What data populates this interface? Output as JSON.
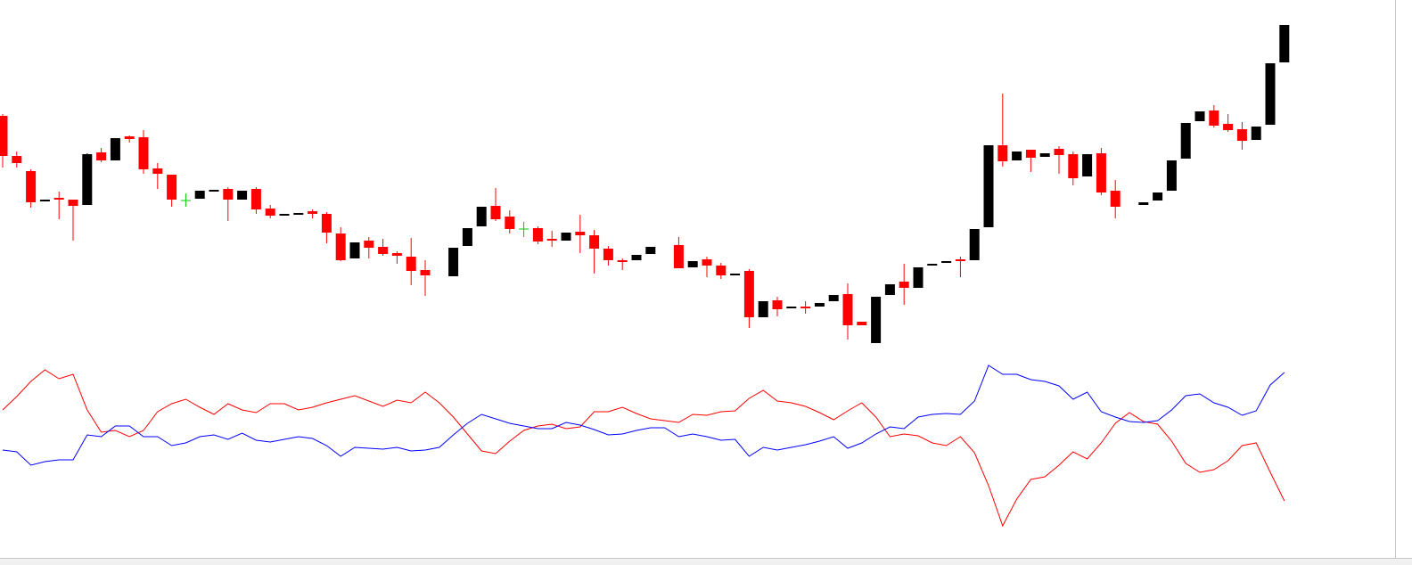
{
  "chart_data": {
    "type": "candlestick",
    "ylim": [
      10,
      640
    ],
    "up_color": "#000000",
    "down_color": "#ff0000",
    "doji_color": "#00cc00",
    "open": [
      510,
      465,
      448,
      415,
      418,
      416,
      410,
      469,
      460,
      487,
      486,
      451,
      444,
      415,
      417,
      426,
      428,
      416,
      428,
      406,
      399,
      400,
      403,
      400,
      378,
      350,
      370,
      363,
      356,
      352,
      337,
      null,
      330,
      364,
      386,
      409,
      397,
      383,
      384,
      372,
      370,
      380,
      376,
      361,
      348,
      348,
      355,
      null,
      365,
      340,
      349,
      342,
      332,
      336,
      284,
      303,
      295,
      296,
      296,
      302,
      310,
      279,
      255,
      309,
      324,
      317,
      342,
      346,
      349,
      348,
      385,
      477,
      460,
      472,
      464,
      473,
      467,
      442,
      468,
      426,
      null,
      410,
      415,
      426,
      462,
      504,
      516,
      501,
      495,
      483,
      500,
      570
    ],
    "high": [
      512,
      470,
      450,
      416,
      425,
      416,
      468,
      474,
      485,
      488,
      494,
      457,
      444,
      423,
      426,
      427,
      430,
      426,
      430,
      410,
      400,
      401,
      405,
      402,
      385,
      368,
      374,
      372,
      358,
      373,
      348,
      null,
      362,
      384,
      408,
      429,
      404,
      391,
      386,
      381,
      379,
      399,
      382,
      364,
      350,
      354,
      363,
      null,
      374,
      347,
      352,
      345,
      333,
      338,
      302,
      307,
      296,
      302,
      300,
      309,
      322,
      279,
      307,
      321,
      344,
      340,
      344,
      347,
      352,
      383,
      477,
      535,
      470,
      472,
      468,
      476,
      470,
      467,
      474,
      438,
      null,
      413,
      424,
      460,
      502,
      515,
      522,
      512,
      503,
      498,
      569,
      612
    ],
    "low": [
      452,
      452,
      407,
      415,
      394,
      370,
      410,
      458,
      460,
      480,
      445,
      428,
      408,
      408,
      417,
      426,
      392,
      416,
      400,
      395,
      399,
      400,
      395,
      367,
      347,
      350,
      350,
      353,
      344,
      320,
      308,
      null,
      330,
      364,
      386,
      392,
      378,
      374,
      366,
      363,
      370,
      356,
      333,
      342,
      337,
      348,
      355,
      null,
      339,
      340,
      329,
      327,
      332,
      272,
      284,
      285,
      295,
      288,
      296,
      302,
      259,
      275,
      255,
      309,
      298,
      317,
      342,
      346,
      329,
      348,
      385,
      453,
      460,
      447,
      464,
      445,
      432,
      442,
      421,
      395,
      null,
      410,
      415,
      426,
      462,
      504,
      497,
      492,
      472,
      483,
      500,
      570
    ],
    "close": [
      465,
      457,
      413,
      416,
      416,
      409,
      467,
      460,
      485,
      484,
      450,
      445,
      416,
      415,
      426,
      427,
      416,
      426,
      405,
      398,
      400,
      401,
      400,
      379,
      348,
      368,
      362,
      355,
      353,
      336,
      331,
      null,
      362,
      384,
      408,
      394,
      383,
      383,
      369,
      370,
      379,
      376,
      361,
      348,
      346,
      354,
      363,
      null,
      339,
      347,
      342,
      331,
      333,
      284,
      302,
      293,
      296,
      294,
      300,
      309,
      275,
      275,
      307,
      321,
      317,
      340,
      344,
      347,
      347,
      383,
      477,
      459,
      470,
      463,
      468,
      466,
      440,
      467,
      424,
      408,
      null,
      413,
      424,
      460,
      502,
      515,
      499,
      494,
      482,
      498,
      569,
      612
    ],
    "series": [
      {
        "color": "#ff0000",
        "values": [
          180,
          195,
          212,
          225,
          215,
          220,
          180,
          155,
          157,
          150,
          157,
          178,
          187,
          192,
          183,
          175,
          187,
          180,
          177,
          187,
          187,
          180,
          183,
          188,
          192,
          196,
          190,
          184,
          191,
          188,
          200,
          188,
          172,
          153,
          134,
          131,
          145,
          157,
          162,
          164,
          159,
          161,
          178,
          178,
          183,
          176,
          170,
          168,
          166,
          175,
          174,
          178,
          179,
          193,
          202,
          190,
          188,
          184,
          177,
          169,
          179,
          188,
          172,
          150,
          153,
          151,
          143,
          140,
          150,
          132,
          95,
          50,
          80,
          102,
          105,
          118,
          133,
          125,
          143,
          165,
          177,
          167,
          164,
          145,
          120,
          110,
          113,
          123,
          140,
          143,
          110,
          78
        ]
      },
      {
        "color": "#0000ff",
        "values": [
          135,
          133,
          118,
          122,
          124,
          124,
          152,
          150,
          162,
          162,
          150,
          150,
          140,
          143,
          150,
          152,
          147,
          154,
          146,
          144,
          147,
          150,
          148,
          140,
          128,
          138,
          137,
          136,
          138,
          134,
          135,
          138,
          152,
          165,
          175,
          170,
          165,
          162,
          159,
          159,
          166,
          163,
          158,
          152,
          153,
          157,
          160,
          160,
          150,
          153,
          150,
          146,
          147,
          128,
          138,
          135,
          138,
          141,
          145,
          150,
          137,
          143,
          153,
          161,
          159,
          172,
          175,
          176,
          175,
          190,
          230,
          220,
          220,
          214,
          212,
          207,
          192,
          200,
          178,
          172,
          167,
          166,
          168,
          180,
          196,
          198,
          188,
          183,
          174,
          179,
          208,
          222
        ]
      }
    ]
  }
}
